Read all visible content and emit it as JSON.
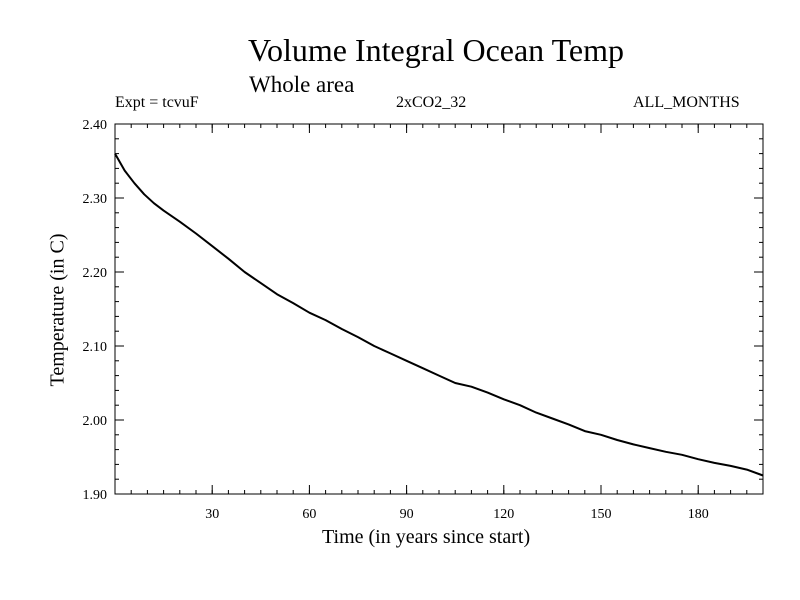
{
  "chart_data": {
    "type": "line",
    "title": "Volume Integral Ocean Temp",
    "subtitle": "Whole area",
    "experiment_label": "Expt = tcvuF",
    "run_label": "2xCO2_32",
    "months_label": "ALL_MONTHS",
    "xlabel": "Time (in years since start)",
    "ylabel": "Temperature (in C)",
    "xlim": [
      0,
      200
    ],
    "ylim": [
      1.9,
      2.4
    ],
    "xticks": [
      30,
      60,
      90,
      120,
      150,
      180
    ],
    "yticks": [
      1.9,
      2.0,
      2.1,
      2.2,
      2.3,
      2.4
    ],
    "ytick_labels": [
      "1.90",
      "2.00",
      "2.10",
      "2.20",
      "2.30",
      "2.40"
    ],
    "grid": false,
    "series": [
      {
        "name": "Volume integral ocean temperature",
        "x": [
          0,
          3,
          6,
          9,
          12,
          15,
          20,
          25,
          30,
          35,
          40,
          45,
          50,
          55,
          60,
          65,
          70,
          75,
          80,
          85,
          90,
          95,
          100,
          105,
          110,
          115,
          120,
          125,
          130,
          135,
          140,
          145,
          150,
          155,
          160,
          165,
          170,
          175,
          180,
          185,
          190,
          195,
          200
        ],
        "y": [
          2.36,
          2.337,
          2.32,
          2.305,
          2.293,
          2.283,
          2.268,
          2.252,
          2.235,
          2.218,
          2.2,
          2.185,
          2.17,
          2.158,
          2.145,
          2.135,
          2.123,
          2.112,
          2.1,
          2.09,
          2.08,
          2.07,
          2.06,
          2.05,
          2.045,
          2.037,
          2.028,
          2.02,
          2.01,
          2.002,
          1.994,
          1.985,
          1.98,
          1.973,
          1.967,
          1.962,
          1.957,
          1.953,
          1.947,
          1.942,
          1.938,
          1.933,
          1.925
        ]
      }
    ]
  }
}
